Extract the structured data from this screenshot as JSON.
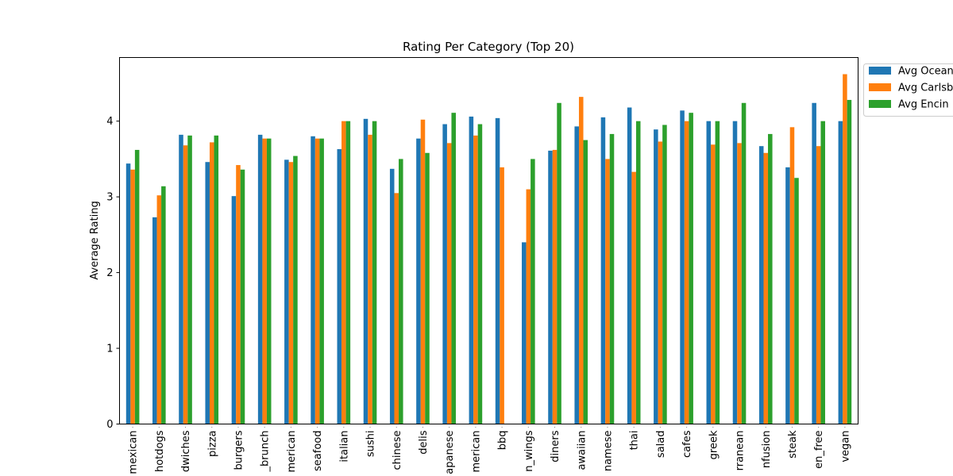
{
  "chart_data": {
    "type": "bar",
    "title": "Rating Per Category (Top 20)",
    "xlabel": "",
    "ylabel": "Average Rating",
    "ylim": [
      0,
      4.84
    ],
    "yticks": [
      0,
      1,
      2,
      3,
      4
    ],
    "grid": false,
    "legend_position": "outside-top-right",
    "categories": [
      "mexican",
      "hotdogs",
      "sandwiches",
      "pizza",
      "burgers",
      "breakfast_brunch",
      "tradamerican",
      "seafood",
      "italian",
      "sushi",
      "chinese",
      "delis",
      "japanese",
      "newamerican",
      "bbq",
      "chicken_wings",
      "diners",
      "hawaiian",
      "vietnamese",
      "thai",
      "salad",
      "cafes",
      "greek",
      "mediterranean",
      "asianfusion",
      "steak",
      "gluten_free",
      "vegan"
    ],
    "category_labels_visible": [
      "mexican",
      "hotdogs",
      "dwiches",
      "pizza",
      "burgers",
      "_brunch",
      "merican",
      "seafood",
      "italian",
      "sushi",
      "chinese",
      "delis",
      "apanese",
      "merican",
      "bbq",
      "n_wings",
      "diners",
      "awaiian",
      "namese",
      "thai",
      "salad",
      "cafes",
      "greek",
      "rranean",
      "nfusion",
      "steak",
      "en_free",
      "vegan"
    ],
    "series": [
      {
        "name": "Avg Ocean",
        "color": "#1f77b4",
        "values": [
          3.44,
          2.73,
          3.82,
          3.46,
          3.01,
          3.82,
          3.49,
          3.8,
          3.63,
          4.03,
          3.37,
          3.77,
          3.96,
          4.06,
          4.04,
          2.4,
          3.61,
          3.93,
          4.05,
          4.18,
          3.89,
          4.14,
          4.0,
          4.0,
          3.67,
          3.39,
          4.24,
          4.0
        ]
      },
      {
        "name": "Avg Carlsb",
        "color": "#ff7f0e",
        "values": [
          3.36,
          3.02,
          3.68,
          3.72,
          3.42,
          3.77,
          3.46,
          3.77,
          4.0,
          3.82,
          3.05,
          4.02,
          3.71,
          3.81,
          3.39,
          3.1,
          3.62,
          4.32,
          3.5,
          3.33,
          3.73,
          4.0,
          3.69,
          3.71,
          3.58,
          3.92,
          3.67,
          4.62
        ]
      },
      {
        "name": "Avg Encin",
        "color": "#2ca02c",
        "values": [
          3.62,
          3.14,
          3.81,
          3.81,
          3.36,
          3.77,
          3.54,
          3.77,
          4.0,
          4.0,
          3.5,
          3.58,
          4.11,
          3.96,
          null,
          3.5,
          4.24,
          3.75,
          3.83,
          4.0,
          3.95,
          4.11,
          4.0,
          4.24,
          3.83,
          3.25,
          4.0,
          4.28
        ]
      }
    ]
  }
}
